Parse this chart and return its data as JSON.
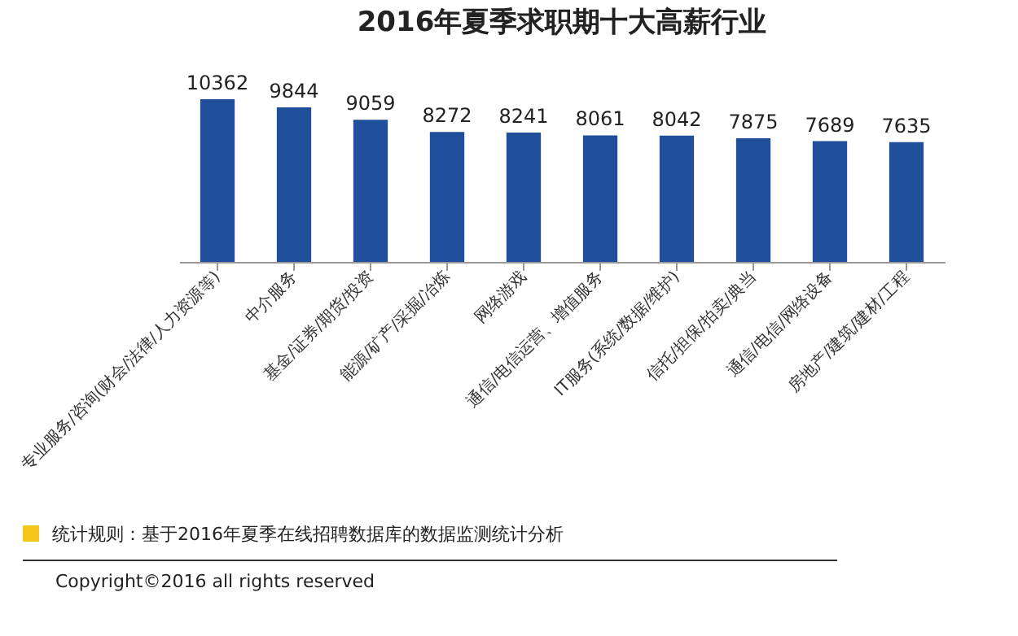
{
  "chart_data": {
    "type": "bar",
    "title": "2016年夏季求职期十大高薪行业",
    "categories": [
      "专业服务/咨询(财会/法律/人力资源等)",
      "中介服务",
      "基金/证券/期货/投资",
      "能源/矿产/采掘/冶炼",
      "网络游戏",
      "通信/电信运营、增值服务",
      "IT服务(系统/数据/维护)",
      "信托/担保/拍卖/典当",
      "通信/电信/网络设备",
      "房地产/建筑/建材/工程"
    ],
    "values": [
      10362,
      9844,
      9059,
      8272,
      8241,
      8061,
      8042,
      7875,
      7689,
      7635
    ],
    "color": "#1f4e9a",
    "data_labels": true,
    "annotations": [
      "统计规则：基于2016年夏季在线招聘数据库的数据监测统计分析",
      "Copyright©2016 all rights reserved"
    ]
  }
}
